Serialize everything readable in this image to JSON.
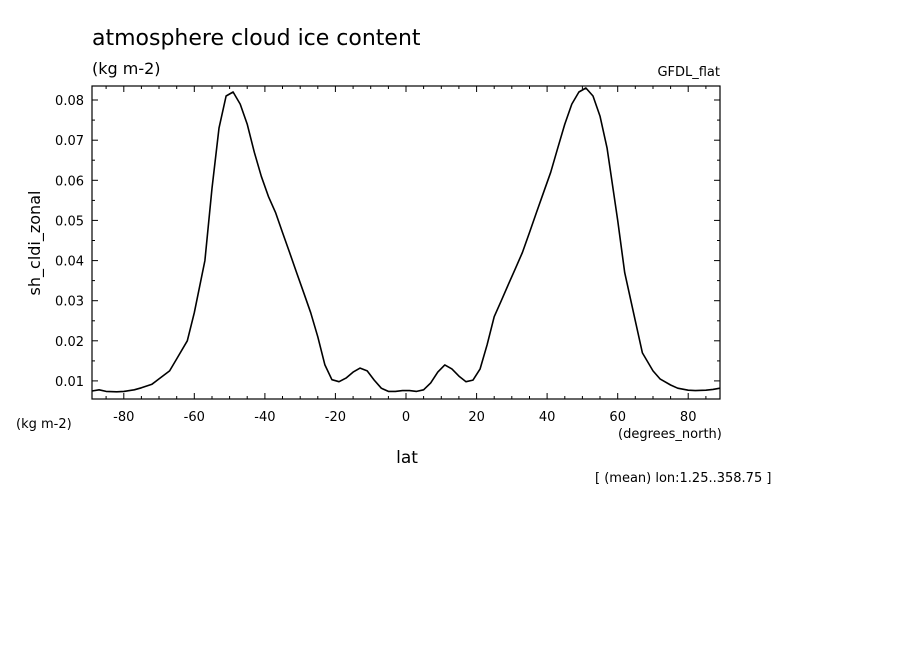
{
  "chart_data": {
    "type": "line",
    "title": "atmosphere cloud ice content",
    "units": "(kg m-2)",
    "model": "GFDL_flat",
    "ylabel": "sh_cldi_zonal",
    "yunits": "(kg m-2)",
    "xlabel": "lat",
    "xunits": "(degrees_north)",
    "note": "[ (mean) lon:1.25..358.75 ]",
    "xlim": [
      -89,
      89
    ],
    "ylim": [
      0.0055,
      0.0835
    ],
    "xticks": [
      -80,
      -60,
      -40,
      -20,
      0,
      20,
      40,
      60,
      80
    ],
    "xtick_labels": [
      "-80",
      "-60",
      "-40",
      "-20",
      "0",
      "20",
      "40",
      "60",
      "80"
    ],
    "yticks": [
      0.01,
      0.02,
      0.03,
      0.04,
      0.05,
      0.06,
      0.07,
      0.08
    ],
    "ytick_labels": [
      "0.01",
      "0.02",
      "0.03",
      "0.04",
      "0.05",
      "0.06",
      "0.07",
      "0.08"
    ],
    "grid": false,
    "series": [
      {
        "x": [
          -89,
          -87,
          -85,
          -82,
          -80,
          -77,
          -75,
          -72,
          -70,
          -67,
          -65,
          -62,
          -60,
          -57,
          -55,
          -53,
          -51,
          -49,
          -47,
          -45,
          -43,
          -41,
          -39,
          -37,
          -35,
          -33,
          -31,
          -29,
          -27,
          -25,
          -23,
          -21,
          -19,
          -17,
          -15,
          -13,
          -11,
          -9,
          -7,
          -5,
          -3,
          -1,
          1,
          3,
          5,
          7,
          9,
          11,
          13,
          15,
          17,
          19,
          21,
          23,
          25,
          27,
          29,
          31,
          33,
          35,
          37,
          39,
          41,
          43,
          45,
          47,
          49,
          51,
          53,
          55,
          57,
          60,
          62,
          65,
          67,
          70,
          72,
          75,
          77,
          80,
          82,
          85,
          87,
          89
        ],
        "y": [
          0.0075,
          0.0078,
          0.0074,
          0.0073,
          0.0074,
          0.0078,
          0.0083,
          0.0092,
          0.0105,
          0.0125,
          0.0155,
          0.02,
          0.027,
          0.04,
          0.058,
          0.073,
          0.081,
          0.082,
          0.079,
          0.074,
          0.067,
          0.061,
          0.056,
          0.052,
          0.047,
          0.042,
          0.037,
          0.032,
          0.027,
          0.021,
          0.014,
          0.0103,
          0.0098,
          0.0107,
          0.0122,
          0.0132,
          0.0125,
          0.0102,
          0.0082,
          0.0074,
          0.0074,
          0.0076,
          0.0076,
          0.0074,
          0.0078,
          0.0095,
          0.0122,
          0.014,
          0.013,
          0.0112,
          0.0098,
          0.0102,
          0.013,
          0.019,
          0.026,
          0.03,
          0.034,
          0.038,
          0.042,
          0.047,
          0.052,
          0.057,
          0.062,
          0.068,
          0.074,
          0.079,
          0.082,
          0.083,
          0.081,
          0.076,
          0.068,
          0.05,
          0.037,
          0.025,
          0.017,
          0.0125,
          0.0105,
          0.009,
          0.0082,
          0.0077,
          0.0076,
          0.0077,
          0.0079,
          0.0082
        ]
      }
    ]
  }
}
